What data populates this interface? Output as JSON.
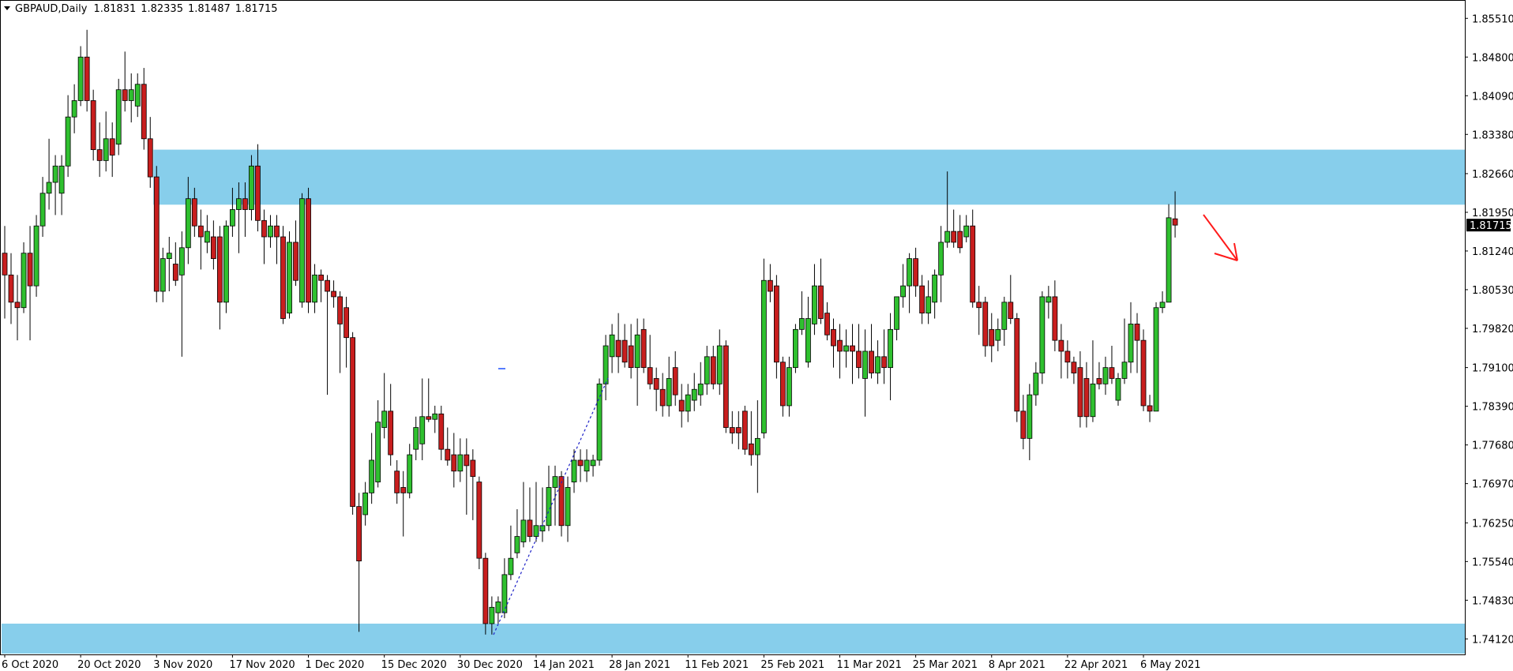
{
  "chart_data": {
    "type": "candlestick",
    "symbol": "GBPAUD,Daily",
    "categories": [
      "6 Oct 2020",
      null,
      null,
      null,
      null,
      null,
      null,
      null,
      null,
      null,
      null,
      null,
      "20 Oct 2020",
      null,
      null,
      null,
      null,
      null,
      null,
      null,
      null,
      null,
      null,
      null,
      "3 Nov 2020",
      null,
      null,
      null,
      null,
      null,
      null,
      null,
      null,
      null,
      null,
      null,
      "17 Nov 2020",
      null,
      null,
      null,
      null,
      null,
      null,
      null,
      null,
      null,
      null,
      null,
      "1 Dec 2020",
      null,
      null,
      null,
      null,
      null,
      null,
      null,
      null,
      null,
      null,
      null,
      "15 Dec 2020",
      null,
      null,
      null,
      null,
      null,
      null,
      null,
      null,
      null,
      null,
      null,
      "30 Dec 2020",
      null,
      null,
      null,
      null,
      null,
      null,
      null,
      null,
      null,
      null,
      null,
      "14 Jan 2021",
      null,
      null,
      null,
      null,
      null,
      null,
      null,
      null,
      null,
      null,
      null,
      "28 Jan 2021",
      null,
      null,
      null,
      null,
      null,
      null,
      null,
      null,
      null,
      null,
      null,
      "11 Feb 2021",
      null,
      null,
      null,
      null,
      null,
      null,
      null,
      null,
      null,
      null,
      null,
      "25 Feb 2021",
      null,
      null,
      null,
      null,
      null,
      null,
      null,
      null,
      null,
      null,
      null,
      "11 Mar 2021",
      null,
      null,
      null,
      null,
      null,
      null,
      null,
      null,
      null,
      null,
      null,
      "25 Mar 2021",
      null,
      null,
      null,
      null,
      null,
      null,
      null,
      null,
      null,
      null,
      null,
      "8 Apr 2021",
      null,
      null,
      null,
      null,
      null,
      null,
      null,
      null,
      null,
      null,
      null,
      "22 Apr 2021",
      null,
      null,
      null,
      null,
      null,
      null,
      null,
      null,
      null,
      null,
      null,
      "6 May 2021",
      null,
      null,
      null,
      null,
      null
    ],
    "open": [
      1.812,
      1.808,
      1.803,
      1.802,
      1.812,
      1.806,
      1.817,
      1.823,
      1.825,
      1.823,
      1.828,
      1.837,
      1.84,
      1.848,
      1.84,
      1.831,
      1.829,
      1.833,
      1.832,
      1.842,
      1.84,
      1.839,
      1.843,
      1.833,
      1.826,
      1.805,
      1.811,
      1.81,
      1.808,
      1.813,
      1.822,
      1.817,
      1.814,
      1.815,
      1.815,
      1.803,
      1.817,
      1.82,
      1.822,
      1.82,
      1.828,
      1.818,
      1.815,
      1.817,
      1.815,
      1.801,
      1.814,
      1.803,
      1.822,
      1.803,
      1.808,
      1.807,
      1.805,
      1.804,
      1.802,
      1.7965,
      1.7655,
      1.764,
      1.768,
      1.77,
      1.78,
      1.783,
      1.772,
      1.769,
      1.768,
      1.776,
      1.777,
      1.782,
      1.7815,
      1.7825,
      1.776,
      1.775,
      1.772,
      1.775,
      1.774,
      1.77,
      1.756,
      1.744,
      1.746,
      1.746,
      1.753,
      1.757,
      1.759,
      1.763,
      1.76,
      1.761,
      1.762,
      1.769,
      1.771,
      1.762,
      1.77,
      1.774,
      1.772,
      1.773,
      1.774,
      1.788,
      1.793,
      1.796,
      1.796,
      1.795,
      1.791,
      1.798,
      1.791,
      1.789,
      1.787,
      1.784,
      1.791,
      1.785,
      1.783,
      1.785,
      1.786,
      1.788,
      1.793,
      1.788,
      1.795,
      1.78,
      1.78,
      1.783,
      1.777,
      1.775,
      1.779,
      1.807,
      1.806,
      1.792,
      1.784,
      1.791,
      1.798,
      1.792,
      1.799,
      1.806,
      1.801,
      1.798,
      1.796,
      1.794,
      1.795,
      1.794,
      1.789,
      1.794,
      1.79,
      1.793,
      1.791,
      1.798,
      1.804,
      1.806,
      1.811,
      1.806,
      1.801,
      1.803,
      1.808,
      1.814,
      1.816,
      1.816,
      1.815,
      1.817,
      1.803,
      1.803,
      1.798,
      1.796,
      1.798,
      1.803,
      1.8,
      1.783,
      1.778,
      1.786,
      1.79,
      1.803,
      1.804,
      1.796,
      1.794,
      1.792,
      1.791,
      1.789,
      1.782,
      1.789,
      1.788,
      1.791,
      1.785,
      1.789,
      1.792,
      1.799,
      1.796,
      1.784,
      1.783,
      1.802,
      1.803,
      1.81831
    ],
    "high": [
      1.817,
      1.812,
      1.808,
      1.814,
      1.817,
      1.819,
      1.826,
      1.833,
      1.83,
      1.83,
      1.841,
      1.843,
      1.85,
      1.853,
      1.842,
      1.836,
      1.838,
      1.836,
      1.844,
      1.849,
      1.845,
      1.845,
      1.846,
      1.837,
      1.828,
      1.813,
      1.815,
      1.814,
      1.816,
      1.826,
      1.824,
      1.82,
      1.819,
      1.818,
      1.817,
      1.818,
      1.824,
      1.825,
      1.825,
      1.83,
      1.832,
      1.82,
      1.819,
      1.819,
      1.817,
      1.816,
      1.818,
      1.823,
      1.824,
      1.81,
      1.809,
      1.808,
      1.807,
      1.805,
      1.804,
      1.7975,
      1.768,
      1.77,
      1.779,
      1.785,
      1.79,
      1.788,
      1.774,
      1.772,
      1.777,
      1.782,
      1.789,
      1.789,
      1.784,
      1.784,
      1.78,
      1.779,
      1.778,
      1.778,
      1.776,
      1.771,
      1.757,
      1.749,
      1.749,
      1.756,
      1.762,
      1.765,
      1.77,
      1.769,
      1.77,
      1.769,
      1.773,
      1.773,
      1.772,
      1.771,
      1.776,
      1.776,
      1.776,
      1.775,
      1.789,
      1.797,
      1.799,
      1.801,
      1.799,
      1.799,
      1.8,
      1.8,
      1.797,
      1.791,
      1.79,
      1.793,
      1.794,
      1.788,
      1.788,
      1.79,
      1.792,
      1.795,
      1.795,
      1.798,
      1.796,
      1.783,
      1.783,
      1.784,
      1.783,
      1.785,
      1.811,
      1.81,
      1.808,
      1.793,
      1.793,
      1.799,
      1.805,
      1.804,
      1.81,
      1.811,
      1.803,
      1.8,
      1.799,
      1.798,
      1.799,
      1.799,
      1.798,
      1.799,
      1.796,
      1.798,
      1.801,
      1.804,
      1.81,
      1.812,
      1.813,
      1.808,
      1.807,
      1.809,
      1.817,
      1.827,
      1.82,
      1.819,
      1.819,
      1.82,
      1.806,
      1.804,
      1.801,
      1.8,
      1.804,
      1.808,
      1.801,
      1.786,
      1.788,
      1.792,
      1.805,
      1.806,
      1.807,
      1.799,
      1.796,
      1.793,
      1.794,
      1.792,
      1.796,
      1.792,
      1.793,
      1.795,
      1.79,
      1.8,
      1.803,
      1.801,
      1.798,
      1.786,
      1.803,
      1.805,
      1.821,
      1.82335
    ],
    "low": [
      1.8,
      1.799,
      1.796,
      1.801,
      1.796,
      1.804,
      1.815,
      1.82,
      1.819,
      1.819,
      1.826,
      1.834,
      1.839,
      1.838,
      1.829,
      1.826,
      1.827,
      1.826,
      1.83,
      1.838,
      1.836,
      1.837,
      1.831,
      1.824,
      1.803,
      1.803,
      1.805,
      1.806,
      1.793,
      1.81,
      1.815,
      1.809,
      1.812,
      1.809,
      1.798,
      1.801,
      1.815,
      1.812,
      1.815,
      1.818,
      1.816,
      1.81,
      1.813,
      1.81,
      1.799,
      1.8,
      1.806,
      1.802,
      1.801,
      1.801,
      1.803,
      1.786,
      1.802,
      1.79,
      1.791,
      1.764,
      1.7425,
      1.762,
      1.766,
      1.769,
      1.778,
      1.773,
      1.766,
      1.76,
      1.767,
      1.774,
      1.774,
      1.781,
      1.779,
      1.774,
      1.773,
      1.769,
      1.77,
      1.764,
      1.763,
      1.754,
      1.742,
      1.742,
      1.744,
      1.745,
      1.752,
      1.756,
      1.758,
      1.759,
      1.759,
      1.759,
      1.761,
      1.762,
      1.76,
      1.759,
      1.768,
      1.77,
      1.77,
      1.771,
      1.773,
      1.785,
      1.79,
      1.79,
      1.791,
      1.789,
      1.784,
      1.79,
      1.787,
      1.783,
      1.782,
      1.782,
      1.784,
      1.78,
      1.781,
      1.783,
      1.784,
      1.786,
      1.787,
      1.786,
      1.779,
      1.777,
      1.776,
      1.775,
      1.773,
      1.768,
      1.778,
      1.803,
      1.789,
      1.782,
      1.782,
      1.79,
      1.797,
      1.791,
      1.797,
      1.799,
      1.796,
      1.791,
      1.789,
      1.791,
      1.788,
      1.789,
      1.782,
      1.789,
      1.788,
      1.788,
      1.785,
      1.796,
      1.802,
      1.801,
      1.804,
      1.799,
      1.799,
      1.8,
      1.803,
      1.813,
      1.813,
      1.812,
      1.814,
      1.802,
      1.797,
      1.793,
      1.792,
      1.794,
      1.795,
      1.799,
      1.781,
      1.776,
      1.774,
      1.784,
      1.788,
      1.8,
      1.794,
      1.789,
      1.789,
      1.788,
      1.78,
      1.78,
      1.781,
      1.787,
      1.786,
      1.788,
      1.784,
      1.788,
      1.79,
      1.79,
      1.783,
      1.781,
      1.783,
      1.801,
      1.803,
      1.81487
    ],
    "close": [
      1.808,
      1.803,
      1.802,
      1.812,
      1.806,
      1.817,
      1.823,
      1.825,
      1.828,
      1.828,
      1.837,
      1.84,
      1.848,
      1.84,
      1.831,
      1.829,
      1.833,
      1.83,
      1.842,
      1.84,
      1.842,
      1.843,
      1.833,
      1.826,
      1.805,
      1.811,
      1.812,
      1.807,
      1.813,
      1.822,
      1.817,
      1.815,
      1.816,
      1.811,
      1.803,
      1.817,
      1.82,
      1.822,
      1.82,
      1.828,
      1.818,
      1.815,
      1.817,
      1.815,
      1.8,
      1.814,
      1.807,
      1.822,
      1.803,
      1.808,
      1.807,
      1.805,
      1.804,
      1.799,
      1.7965,
      1.7655,
      1.7555,
      1.768,
      1.774,
      1.781,
      1.783,
      1.775,
      1.768,
      1.768,
      1.775,
      1.78,
      1.782,
      1.7815,
      1.7825,
      1.776,
      1.774,
      1.772,
      1.775,
      1.773,
      1.771,
      1.756,
      1.744,
      1.747,
      1.748,
      1.753,
      1.756,
      1.76,
      1.763,
      1.76,
      1.762,
      1.762,
      1.769,
      1.771,
      1.762,
      1.769,
      1.774,
      1.773,
      1.774,
      1.774,
      1.788,
      1.795,
      1.797,
      1.793,
      1.792,
      1.791,
      1.797,
      1.791,
      1.788,
      1.787,
      1.784,
      1.789,
      1.786,
      1.783,
      1.786,
      1.787,
      1.788,
      1.793,
      1.788,
      1.795,
      1.78,
      1.779,
      1.779,
      1.776,
      1.775,
      1.778,
      1.807,
      1.805,
      1.792,
      1.784,
      1.791,
      1.798,
      1.8,
      1.8,
      1.806,
      1.8,
      1.797,
      1.795,
      1.794,
      1.795,
      1.794,
      1.791,
      1.794,
      1.79,
      1.793,
      1.791,
      1.798,
      1.804,
      1.806,
      1.811,
      1.806,
      1.801,
      1.804,
      1.808,
      1.814,
      1.816,
      1.814,
      1.813,
      1.817,
      1.803,
      1.802,
      1.795,
      1.795,
      1.798,
      1.803,
      1.8,
      1.783,
      1.778,
      1.786,
      1.79,
      1.804,
      1.804,
      1.796,
      1.794,
      1.792,
      1.79,
      1.782,
      1.782,
      1.788,
      1.788,
      1.791,
      1.789,
      1.789,
      1.792,
      1.799,
      1.796,
      1.784,
      1.783,
      1.802,
      1.803,
      1.8185,
      1.81715
    ],
    "up_color": "#2fc02f",
    "down_color": "#c81e1e",
    "zones": [
      {
        "from": 24,
        "top": 1.831,
        "bottom": 1.8209,
        "color": "#87ceeb"
      },
      {
        "from": 0,
        "top": 1.744,
        "bottom": 1.7385,
        "color": "#87ceeb"
      }
    ],
    "ylim": [
      1.73835,
      1.85847
    ],
    "yticks": [
      {
        "value": 1.8551,
        "label": "1.85510"
      },
      {
        "value": 1.848,
        "label": "1.84800"
      },
      {
        "value": 1.8409,
        "label": "1.84090"
      },
      {
        "value": 1.8338,
        "label": "1.83380"
      },
      {
        "value": 1.8266,
        "label": "1.82660"
      },
      {
        "value": 1.8195,
        "label": "1.81950"
      },
      {
        "value": 1.8124,
        "label": "1.81240"
      },
      {
        "value": 1.8053,
        "label": "1.80530"
      },
      {
        "value": 1.7982,
        "label": "1.79820"
      },
      {
        "value": 1.791,
        "label": "1.79100"
      },
      {
        "value": 1.7839,
        "label": "1.78390"
      },
      {
        "value": 1.7768,
        "label": "1.77680"
      },
      {
        "value": 1.7697,
        "label": "1.76970"
      },
      {
        "value": 1.7625,
        "label": "1.76250"
      },
      {
        "value": 1.7554,
        "label": "1.75540"
      },
      {
        "value": 1.7483,
        "label": "1.74830"
      },
      {
        "value": 1.7412,
        "label": "1.74120"
      }
    ],
    "grid": false
  }
}
